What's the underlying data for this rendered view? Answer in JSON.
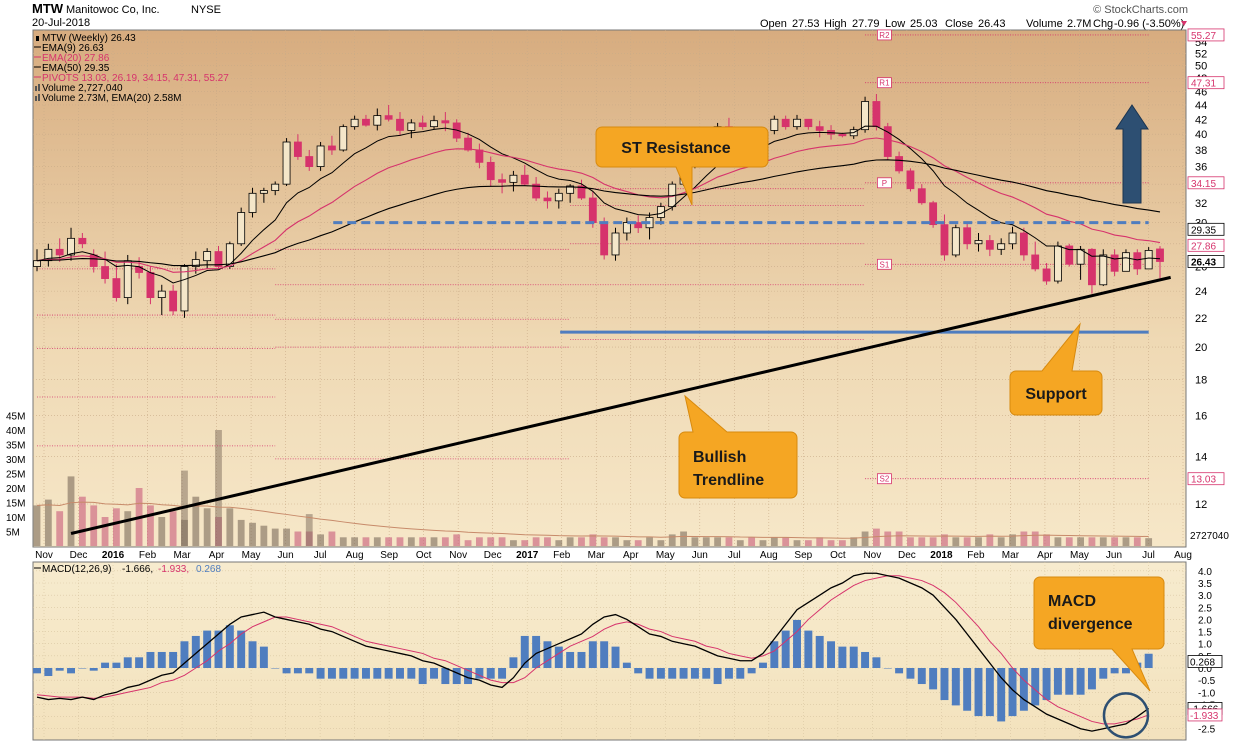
{
  "header": {
    "symbol": "MTW",
    "company": "Manitowoc Co, Inc.",
    "exchange": "NYSE",
    "date": "20-Jul-2018",
    "credit": "© StockCharts.com",
    "quote": {
      "open_label": "Open",
      "open": "27.53",
      "high_label": "High",
      "high": "27.79",
      "low_label": "Low",
      "low": "25.03",
      "close_label": "Close",
      "close": "26.43",
      "volume_label": "Volume",
      "volume": "2.7M",
      "chg_label": "Chg",
      "chg": "-0.96 (-3.50%)"
    }
  },
  "legend": [
    {
      "text": "MTW (Weekly) 26.43",
      "color": "#000000",
      "swatch": "candle"
    },
    {
      "text": "EMA(9) 26.63",
      "color": "#000000",
      "swatch": "line"
    },
    {
      "text": "EMA(20) 27.86",
      "color": "#d6336c",
      "swatch": "line"
    },
    {
      "text": "EMA(50) 29.35",
      "color": "#000000",
      "swatch": "line"
    },
    {
      "text": "PIVOTS 13.03, 26.19, 34.15, 47.31, 55.27",
      "color": "#d6336c",
      "swatch": "line"
    },
    {
      "text": "Volume 2,727,040",
      "color": "#000000",
      "swatch": "bar"
    },
    {
      "text": "Volume 2.73M, EMA(20) 2.58M",
      "color": "#000000",
      "swatch": "bar"
    }
  ],
  "macd_legend": {
    "name": "MACD(12,26,9)",
    "macd": "-1.666,",
    "signal": "-1.933,",
    "hist": "0.268"
  },
  "callouts": {
    "st_resistance": "ST Resistance",
    "support": "Support",
    "bullish_1": "Bullish",
    "bullish_2": "Trendline",
    "macd_1": "MACD",
    "macd_2": "divergence"
  },
  "colors": {
    "up": "#000000",
    "down": "#d6336c",
    "ema9": "#000000",
    "ema20": "#d6336c",
    "ema50": "#000000",
    "pivot": "#d6336c",
    "volume": "#4f7dbf",
    "resistance": "#4f7dbf",
    "support": "#4f7dbf",
    "trendline": "#000000",
    "arrow": "#2d4f72",
    "callout": "#f5a623",
    "macd": "#000000",
    "signal": "#d6336c",
    "histogram": "#4f7dbf"
  },
  "chart_data": [
    {
      "type": "candlestick",
      "title": "MTW (Weekly)",
      "x_ticks": [
        "Nov",
        "Dec",
        "2016",
        "Feb",
        "Mar",
        "Apr",
        "May",
        "Jun",
        "Jul",
        "Aug",
        "Sep",
        "Oct",
        "Nov",
        "Dec",
        "2017",
        "Feb",
        "Mar",
        "Apr",
        "May",
        "Jun",
        "Jul",
        "Aug",
        "Sep",
        "Oct",
        "Nov",
        "Dec",
        "2018",
        "Feb",
        "Mar",
        "Apr",
        "May",
        "Jun",
        "Jul",
        "Aug"
      ],
      "x_ticks_bold": [
        "2016",
        "2017",
        "2018"
      ],
      "y_ticks": [
        12,
        14,
        16,
        18,
        20,
        22,
        24,
        26,
        28,
        30,
        32,
        34,
        36,
        38,
        40,
        42,
        44,
        46,
        48,
        50,
        52,
        54
      ],
      "ylim": [
        10.5,
        55.8
      ],
      "y_scale": "log",
      "price_badges": [
        {
          "value": 55.27,
          "label": "55.27",
          "style": "pivot"
        },
        {
          "value": 47.31,
          "label": "47.31",
          "style": "pivot"
        },
        {
          "value": 34.15,
          "label": "34.15",
          "style": "pivot"
        },
        {
          "value": 29.35,
          "label": "29.35",
          "style": "plain"
        },
        {
          "value": 27.86,
          "label": "27.86",
          "style": "pivot"
        },
        {
          "value": 26.43,
          "label": "26.43",
          "style": "current"
        },
        {
          "value": 13.03,
          "label": "13.03",
          "style": "pivot"
        }
      ],
      "pivot_markers": [
        {
          "label": "R2",
          "value": 55.27
        },
        {
          "label": "R1",
          "value": 47.31
        },
        {
          "label": "P",
          "value": 34.15
        },
        {
          "label": "S1",
          "value": 26.19
        },
        {
          "label": "S2",
          "value": 13.03
        }
      ],
      "candles": [
        [
          26,
          27.5,
          25.6,
          26.5
        ],
        [
          26.5,
          28,
          26,
          27.5
        ],
        [
          27.5,
          28.5,
          26.4,
          27
        ],
        [
          27,
          29.5,
          26.5,
          28.5
        ],
        [
          28.5,
          29,
          27.6,
          28
        ],
        [
          27,
          27.5,
          25.5,
          26
        ],
        [
          26,
          27.3,
          24.6,
          25
        ],
        [
          25,
          26.2,
          23.2,
          23.5
        ],
        [
          23.5,
          27,
          23,
          26.5
        ],
        [
          26,
          26.8,
          25,
          25.5
        ],
        [
          25.5,
          26,
          23,
          23.5
        ],
        [
          23.5,
          24.5,
          22.2,
          24
        ],
        [
          24,
          24.5,
          22.2,
          22.5
        ],
        [
          22.5,
          26.2,
          22,
          26
        ],
        [
          26,
          27.3,
          25.4,
          26.6
        ],
        [
          26.5,
          27.6,
          25.8,
          27.3
        ],
        [
          27.3,
          27.8,
          25.8,
          26
        ],
        [
          26,
          28.2,
          25.8,
          28
        ],
        [
          28,
          31.5,
          27.8,
          31
        ],
        [
          31,
          33.6,
          30.5,
          33
        ],
        [
          33,
          33.6,
          32,
          33.3
        ],
        [
          33.3,
          34.3,
          32.8,
          34
        ],
        [
          34,
          39.5,
          33.8,
          39
        ],
        [
          39,
          40,
          36.8,
          37.2
        ],
        [
          37.2,
          38,
          35.5,
          36
        ],
        [
          36,
          39,
          35.5,
          38.5
        ],
        [
          38.5,
          39.8,
          37.4,
          38
        ],
        [
          38,
          41.3,
          37.8,
          41
        ],
        [
          41,
          42.5,
          40.6,
          42
        ],
        [
          42,
          42.6,
          41,
          41.2
        ],
        [
          41.2,
          43.5,
          40.5,
          42.5
        ],
        [
          42.5,
          44,
          41.7,
          42
        ],
        [
          42,
          43,
          39.8,
          40.5
        ],
        [
          40.5,
          42,
          39.5,
          41.5
        ],
        [
          41.5,
          42.5,
          40.6,
          41
        ],
        [
          41,
          42.5,
          40.7,
          41.8
        ],
        [
          41.8,
          43,
          40.4,
          41.5
        ],
        [
          41.5,
          42,
          39,
          39.5
        ],
        [
          39.5,
          40.2,
          37.8,
          38
        ],
        [
          38,
          38.8,
          35.8,
          36.5
        ],
        [
          36.5,
          37.2,
          33.8,
          34.5
        ],
        [
          34.5,
          35.2,
          33,
          34.2
        ],
        [
          34.2,
          35.5,
          33.2,
          35
        ],
        [
          35,
          36.2,
          33.8,
          34
        ],
        [
          34,
          34.8,
          32.2,
          32.5
        ],
        [
          32.5,
          33.2,
          31.4,
          32.2
        ],
        [
          32.2,
          33.5,
          31.4,
          33
        ],
        [
          33,
          34,
          32,
          33.8
        ],
        [
          33.8,
          34.5,
          32.3,
          32.5
        ],
        [
          32.5,
          33.2,
          29.5,
          30
        ],
        [
          30,
          30.5,
          26.6,
          27
        ],
        [
          27,
          29.5,
          26.5,
          29
        ],
        [
          29,
          30.5,
          28.3,
          30
        ],
        [
          30,
          30.7,
          29,
          29.5
        ],
        [
          29.5,
          31,
          28.4,
          30.5
        ],
        [
          30.5,
          32,
          29.8,
          31.6
        ],
        [
          31.6,
          34.3,
          31.2,
          34
        ],
        [
          34,
          37,
          33.8,
          36.8
        ],
        [
          36.8,
          38.5,
          35.8,
          38
        ],
        [
          38,
          40.5,
          37.5,
          40
        ],
        [
          40,
          41.5,
          39.4,
          41
        ],
        [
          41,
          42.2,
          39.2,
          39.5
        ],
        [
          39.5,
          40.8,
          38.2,
          40.3
        ],
        [
          40.3,
          40.8,
          38.8,
          39
        ],
        [
          39,
          40.8,
          38.6,
          40.5
        ],
        [
          40.5,
          42.5,
          40,
          42
        ],
        [
          42,
          42.5,
          40.6,
          41
        ],
        [
          41,
          42.6,
          40.6,
          42
        ],
        [
          42,
          42,
          40.6,
          41
        ],
        [
          41,
          41.8,
          39.6,
          40.5
        ],
        [
          40.5,
          41.2,
          39.3,
          40
        ],
        [
          40,
          40.2,
          39.6,
          39.8
        ],
        [
          39.8,
          41,
          39.4,
          40.6
        ],
        [
          40.6,
          45.2,
          40.2,
          44.5
        ],
        [
          44.5,
          45.6,
          40.5,
          41
        ],
        [
          41,
          41.5,
          36.8,
          37.2
        ],
        [
          37.2,
          37.8,
          35.2,
          35.5
        ],
        [
          35.5,
          35.8,
          33.2,
          33.5
        ],
        [
          33.5,
          34,
          31.8,
          32
        ],
        [
          32,
          32.2,
          29.5,
          29.8
        ],
        [
          29.8,
          30.8,
          26.5,
          27
        ],
        [
          27,
          29.8,
          26.8,
          29.5
        ],
        [
          29.5,
          30,
          27.5,
          28
        ],
        [
          28,
          29,
          27.3,
          28.3
        ],
        [
          28.3,
          28.8,
          26.9,
          27.5
        ],
        [
          27.5,
          28.5,
          27,
          28
        ],
        [
          28,
          29.6,
          27.5,
          29
        ],
        [
          29,
          29.5,
          26.5,
          27
        ],
        [
          27,
          28.2,
          25.6,
          25.8
        ],
        [
          25.8,
          26.3,
          24.5,
          24.8
        ],
        [
          24.8,
          28.2,
          24.6,
          27.8
        ],
        [
          27.8,
          28,
          26,
          26.2
        ],
        [
          26.2,
          27.8,
          24.9,
          27.5
        ],
        [
          27.5,
          27.6,
          23.8,
          24.5
        ],
        [
          24.5,
          27.5,
          24.4,
          27
        ],
        [
          27,
          27.5,
          25.2,
          25.6
        ],
        [
          25.6,
          27.5,
          25.6,
          27.2
        ],
        [
          27.2,
          27.5,
          25.3,
          25.8
        ],
        [
          25.8,
          27.7,
          25.8,
          27.4
        ],
        [
          27.53,
          27.79,
          25.03,
          26.43
        ]
      ],
      "volume": {
        "axis_ticks": [
          "5M",
          "10M",
          "15M",
          "20M",
          "25M",
          "30M",
          "35M",
          "40M",
          "45M"
        ],
        "axis_values": [
          5,
          10,
          15,
          20,
          25,
          30,
          35,
          40,
          45
        ],
        "unit": "M",
        "last_label": "2727040",
        "values": [
          14,
          16,
          12,
          24,
          17,
          14,
          10,
          13,
          12,
          20,
          14,
          10,
          12,
          9,
          17,
          13,
          10,
          13,
          9,
          8,
          7,
          6,
          6,
          5,
          5,
          4,
          5,
          3,
          3,
          3,
          3,
          3,
          3,
          3,
          3,
          3,
          3,
          4,
          2,
          3,
          3,
          3,
          2,
          2,
          3,
          3,
          2,
          3,
          3,
          4,
          3,
          3,
          2,
          2,
          3,
          2,
          4,
          5,
          3,
          3,
          3,
          3,
          2,
          3,
          2,
          3,
          3,
          2,
          2,
          3,
          2,
          2,
          3,
          5,
          6,
          5,
          5,
          3,
          3,
          3,
          4,
          3,
          3,
          3,
          4,
          3,
          4,
          5,
          5,
          4,
          3,
          3,
          3,
          3,
          3,
          3,
          3,
          3,
          2.7
        ]
      },
      "volume_price_bars": [
        {
          "index": 13,
          "value": 26
        },
        {
          "index": 16,
          "value": 40
        },
        {
          "index": 24,
          "value": 11
        }
      ],
      "trendline": {
        "start": [
          3,
          10.9
        ],
        "end": [
          98,
          25.1
        ]
      },
      "resistance": {
        "value": 30,
        "x_range": [
          27,
          98
        ]
      },
      "support": {
        "value": 21,
        "x_range": [
          47,
          98
        ]
      }
    },
    {
      "type": "line",
      "title": "MACD(12,26,9)",
      "y_ticks": [
        -2.5,
        -2.0,
        -1.5,
        -1.0,
        -0.5,
        0.0,
        0.5,
        1.0,
        1.5,
        2.0,
        2.5,
        3.0,
        3.5,
        4.0
      ],
      "ylim": [
        -2.8,
        4.2
      ],
      "badges": [
        {
          "value": 0.268,
          "label": "0.268",
          "style": "plain"
        },
        {
          "value": -1.666,
          "label": "-1.666",
          "style": "plain"
        },
        {
          "value": -1.933,
          "label": "-1.933",
          "style": "pivot"
        }
      ],
      "macd": [
        -1.2,
        -1.3,
        -1.25,
        -1.3,
        -1.2,
        -1.3,
        -1.1,
        -1.0,
        -0.8,
        -0.7,
        -0.5,
        -0.3,
        -0.2,
        0.2,
        0.6,
        1.0,
        1.4,
        1.8,
        2.1,
        2.2,
        2.3,
        2.1,
        2.0,
        1.9,
        1.8,
        1.6,
        1.5,
        1.3,
        1.1,
        0.9,
        0.8,
        0.7,
        0.6,
        0.5,
        0.3,
        0.2,
        0.0,
        -0.2,
        -0.4,
        -0.5,
        -0.7,
        -0.8,
        -0.4,
        0.2,
        0.6,
        0.8,
        1.0,
        1.2,
        1.4,
        1.8,
        2.1,
        2.2,
        2.0,
        1.7,
        1.4,
        1.3,
        1.1,
        1.0,
        0.9,
        0.7,
        0.5,
        0.4,
        0.3,
        0.3,
        0.6,
        1.2,
        1.8,
        2.4,
        2.7,
        3.0,
        3.3,
        3.5,
        3.8,
        3.9,
        3.9,
        3.8,
        3.7,
        3.5,
        3.3,
        3.0,
        2.5,
        2.0,
        1.4,
        0.8,
        0.2,
        -0.4,
        -0.9,
        -1.3,
        -1.6,
        -1.9,
        -2.1,
        -2.3,
        -2.5,
        -2.6,
        -2.5,
        -2.4,
        -2.3,
        -2.0,
        -1.666
      ],
      "signal": [
        -1.1,
        -1.15,
        -1.2,
        -1.2,
        -1.2,
        -1.25,
        -1.2,
        -1.1,
        -1.0,
        -0.9,
        -0.8,
        -0.6,
        -0.5,
        -0.3,
        0.0,
        0.3,
        0.7,
        1.0,
        1.4,
        1.7,
        1.9,
        2.1,
        2.1,
        2.0,
        1.9,
        1.8,
        1.7,
        1.5,
        1.3,
        1.1,
        1.0,
        0.9,
        0.8,
        0.7,
        0.6,
        0.4,
        0.3,
        0.1,
        -0.1,
        -0.3,
        -0.5,
        -0.6,
        -0.6,
        -0.4,
        0.0,
        0.3,
        0.6,
        0.9,
        1.1,
        1.3,
        1.6,
        1.8,
        1.9,
        1.8,
        1.6,
        1.5,
        1.3,
        1.2,
        1.1,
        0.9,
        0.8,
        0.6,
        0.5,
        0.4,
        0.5,
        0.7,
        1.1,
        1.5,
        2.0,
        2.4,
        2.8,
        3.1,
        3.4,
        3.6,
        3.7,
        3.8,
        3.8,
        3.7,
        3.6,
        3.4,
        3.1,
        2.7,
        2.2,
        1.7,
        1.1,
        0.6,
        0.0,
        -0.5,
        -0.9,
        -1.3,
        -1.6,
        -1.8,
        -2.0,
        -2.2,
        -2.3,
        -2.3,
        -2.2,
        -2.1,
        -1.933
      ]
    }
  ]
}
